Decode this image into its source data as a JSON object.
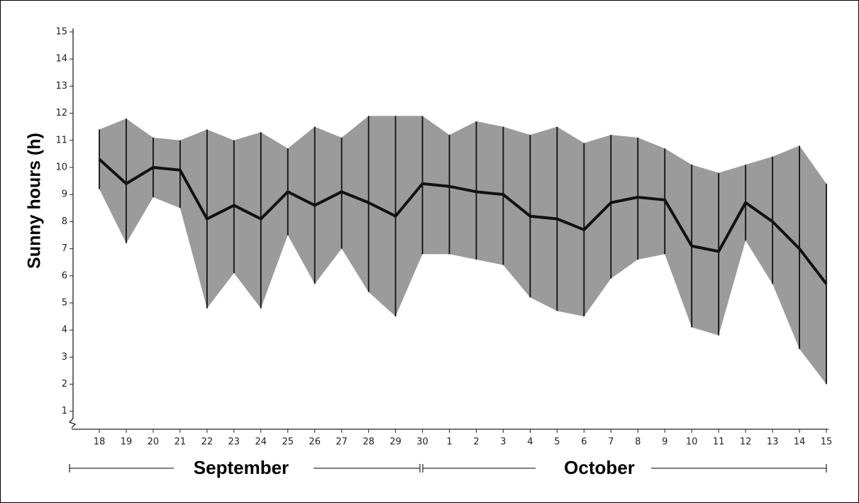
{
  "chart_data": {
    "type": "range-line",
    "y_label": "Sunny hours (h)",
    "categories": [
      "18",
      "19",
      "20",
      "21",
      "22",
      "23",
      "24",
      "25",
      "26",
      "27",
      "28",
      "29",
      "30",
      "1",
      "2",
      "3",
      "4",
      "5",
      "6",
      "7",
      "8",
      "9",
      "10",
      "11",
      "12",
      "13",
      "14",
      "15"
    ],
    "values": [
      10.3,
      9.4,
      10.0,
      9.9,
      8.1,
      8.6,
      8.1,
      9.1,
      8.6,
      9.1,
      8.7,
      8.2,
      9.4,
      9.3,
      9.1,
      9.0,
      8.2,
      8.1,
      7.7,
      8.7,
      8.9,
      8.8,
      7.1,
      6.9,
      8.7,
      8.0,
      7.0,
      5.7
    ],
    "lows": [
      9.2,
      7.2,
      8.9,
      8.5,
      4.8,
      6.1,
      4.8,
      7.5,
      5.7,
      7.0,
      5.4,
      4.5,
      6.8,
      6.8,
      6.6,
      6.4,
      5.2,
      4.7,
      4.5,
      5.9,
      6.6,
      6.8,
      4.1,
      3.8,
      7.3,
      5.7,
      3.3,
      2.0
    ],
    "highs": [
      11.4,
      11.8,
      11.1,
      11.0,
      11.4,
      11.0,
      11.3,
      10.7,
      11.5,
      11.1,
      11.9,
      11.9,
      11.9,
      11.2,
      11.7,
      11.5,
      11.2,
      11.5,
      10.9,
      11.2,
      11.1,
      10.7,
      10.1,
      9.8,
      10.1,
      10.4,
      10.8,
      9.4
    ],
    "months": [
      "September",
      "October"
    ],
    "line_color": "#111111",
    "area_color": "#7a7a7a",
    "ylim": [
      0.6,
      15
    ],
    "yticks": [
      1,
      2,
      3,
      4,
      5,
      6,
      7,
      8,
      9,
      10,
      11,
      12,
      13,
      14,
      15
    ]
  }
}
